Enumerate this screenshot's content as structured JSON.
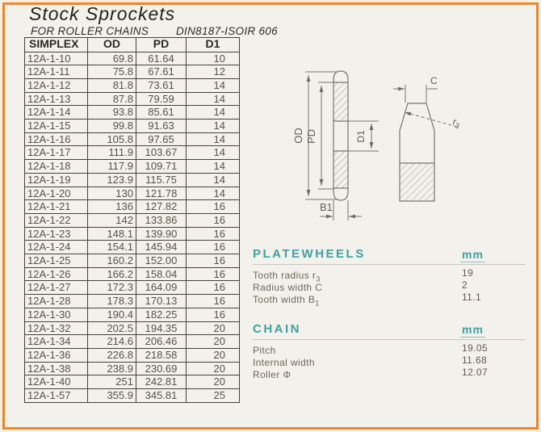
{
  "page": {
    "title": "Stock  Sprockets",
    "subtitle_left": "FOR ROLLER CHAINS",
    "subtitle_right": "DIN8187-ISOIR  606"
  },
  "table": {
    "headers": [
      "SIMPLEX",
      "OD",
      "PD",
      "D1"
    ],
    "rows": [
      [
        "12A-1-10",
        "69.8",
        "61.64",
        "10"
      ],
      [
        "12A-1-11",
        "75.8",
        "67.61",
        "12"
      ],
      [
        "12A-1-12",
        "81.8",
        "73.61",
        "14"
      ],
      [
        "12A-1-13",
        "87.8",
        "79.59",
        "14"
      ],
      [
        "12A-1-14",
        "93.8",
        "85.61",
        "14"
      ],
      [
        "12A-1-15",
        "99.8",
        "91.63",
        "14"
      ],
      [
        "12A-1-16",
        "105.8",
        "97.65",
        "14"
      ],
      [
        "12A-1-17",
        "111.9",
        "103.67",
        "14"
      ],
      [
        "12A-1-18",
        "117.9",
        "109.71",
        "14"
      ],
      [
        "12A-1-19",
        "123.9",
        "115.75",
        "14"
      ],
      [
        "12A-1-20",
        "130",
        "121.78",
        "14"
      ],
      [
        "12A-1-21",
        "136",
        "127.82",
        "16"
      ],
      [
        "12A-1-22",
        "142",
        "133.86",
        "16"
      ],
      [
        "12A-1-23",
        "148.1",
        "139.90",
        "16"
      ],
      [
        "12A-1-24",
        "154.1",
        "145.94",
        "16"
      ],
      [
        "12A-1-25",
        "160.2",
        "152.00",
        "16"
      ],
      [
        "12A-1-26",
        "166.2",
        "158.04",
        "16"
      ],
      [
        "12A-1-27",
        "172.3",
        "164.09",
        "16"
      ],
      [
        "12A-1-28",
        "178.3",
        "170.13",
        "16"
      ],
      [
        "12A-1-30",
        "190.4",
        "182.25",
        "16"
      ],
      [
        "12A-1-32",
        "202.5",
        "194.35",
        "20"
      ],
      [
        "12A-1-34",
        "214.6",
        "206.46",
        "20"
      ],
      [
        "12A-1-36",
        "226.8",
        "218.58",
        "20"
      ],
      [
        "12A-1-38",
        "238.9",
        "230.69",
        "20"
      ],
      [
        "12A-1-40",
        "251",
        "242.81",
        "20"
      ],
      [
        "12A-1-57",
        "355.9",
        "345.81",
        "25"
      ]
    ]
  },
  "diagram": {
    "labels": {
      "od": "OD",
      "pd": "PD",
      "d1": "D1",
      "b1": "B1",
      "c": "C",
      "r3_main": "r",
      "r3_sub": "3"
    }
  },
  "platewheels": {
    "heading": "PLATEWHEELS",
    "unit": "mm",
    "items": [
      {
        "label": "Tooth radius r",
        "sub": "3",
        "value": "19"
      },
      {
        "label": "Radius width C",
        "sub": "",
        "value": "2"
      },
      {
        "label": "Tooth width B",
        "sub": "1",
        "value": "11.1"
      }
    ]
  },
  "chain": {
    "heading": "CHAIN",
    "unit": "mm",
    "items": [
      {
        "label": "Pitch",
        "value": "19.05"
      },
      {
        "label": "Internal width",
        "value": "11.68"
      },
      {
        "label": "Roller Φ",
        "value": "12.07"
      }
    ]
  },
  "colors": {
    "border_orange": "#e8872e",
    "page_cream": "#f7f0de",
    "paper": "#f3f1ec",
    "accent_teal": "#3fa0a2",
    "table_line": "#45433c"
  }
}
